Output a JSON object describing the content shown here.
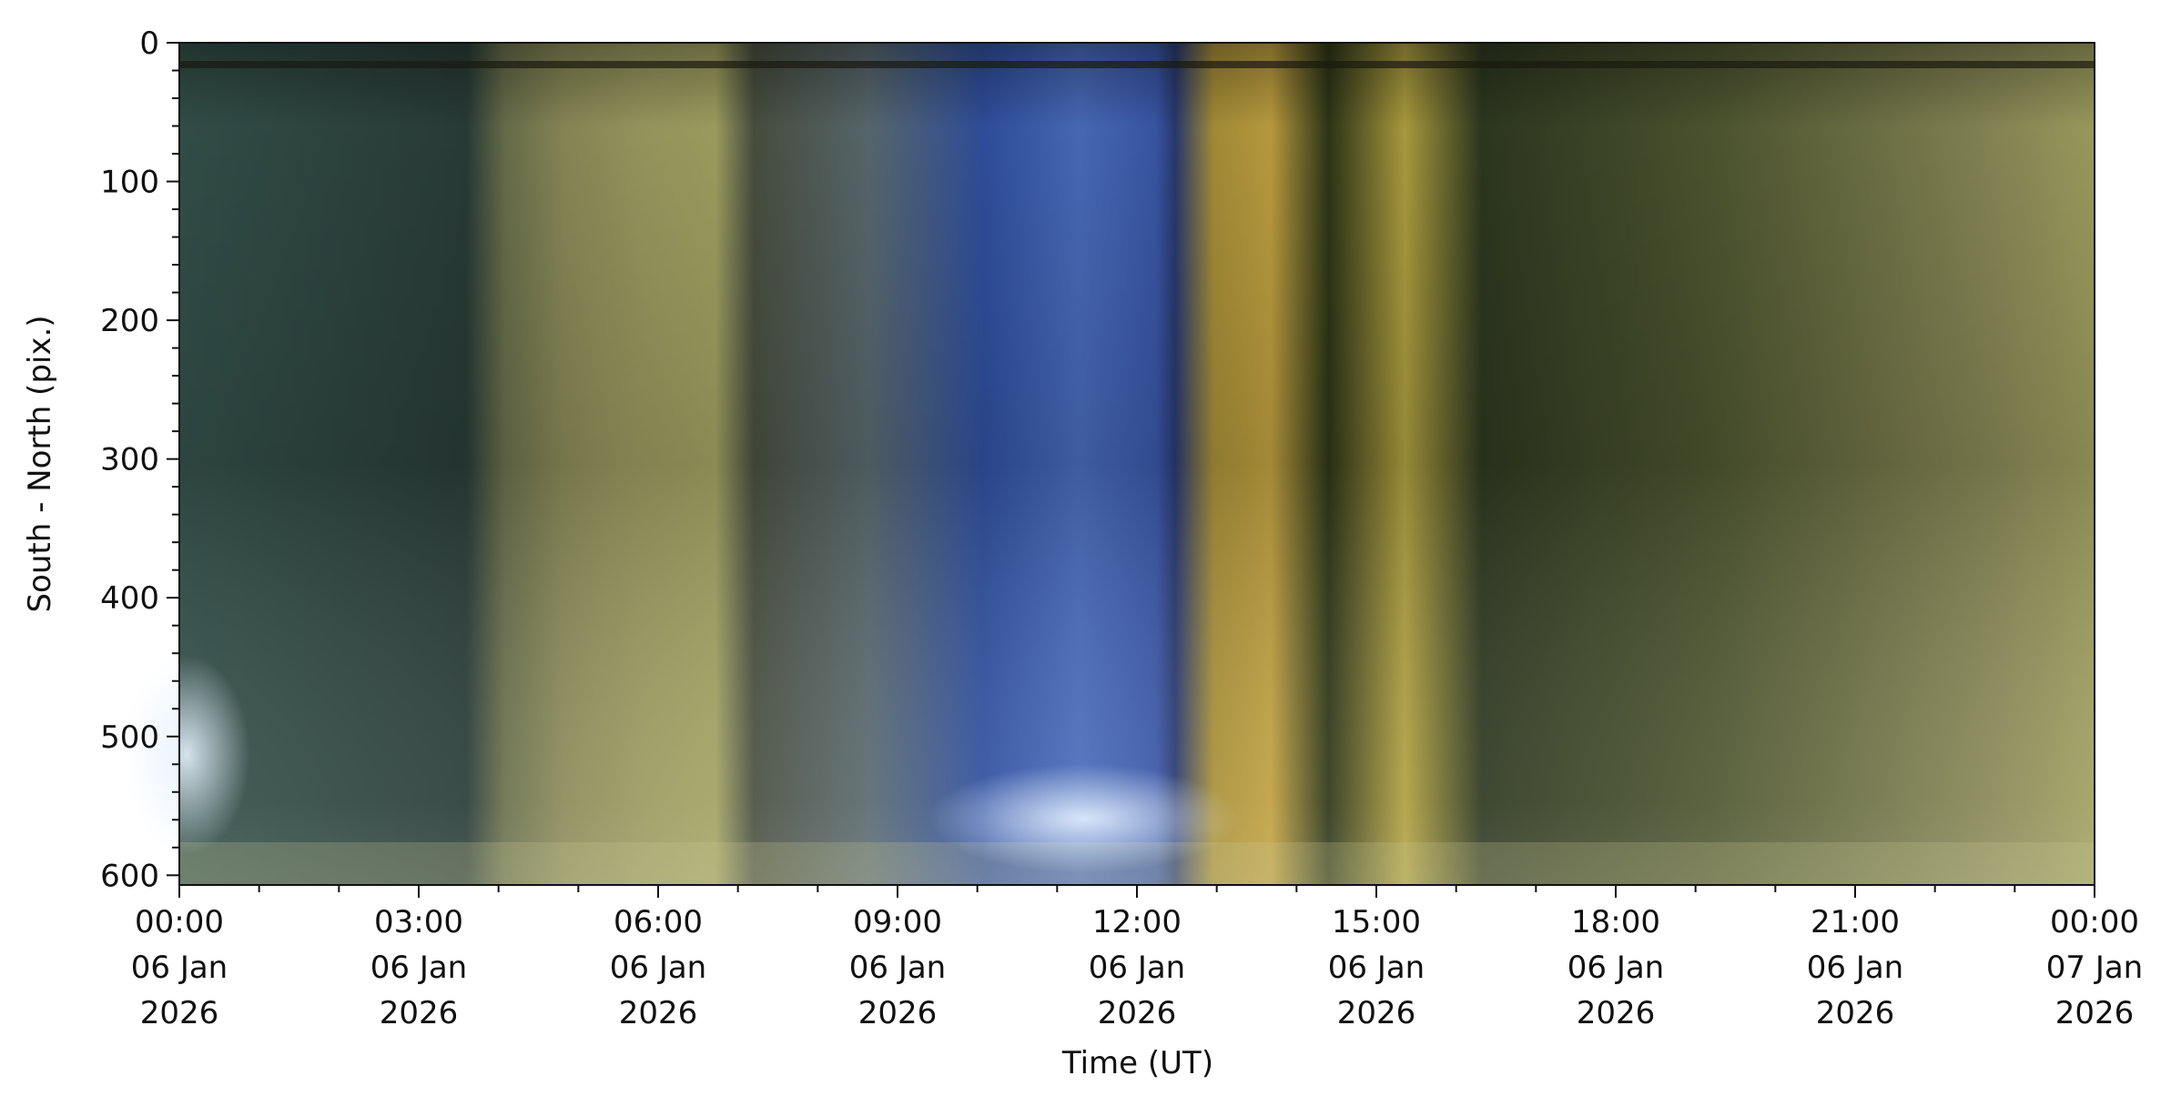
{
  "chart_data": {
    "type": "keogram",
    "xlabel": "Time (UT)",
    "ylabel": "South - North (pix.)",
    "xlim": [
      "2026-01-06T00:00",
      "2026-01-07T00:00"
    ],
    "xticks": [
      {
        "value": "2026-01-06T00:00",
        "label": [
          "00:00",
          "06 Jan",
          "2026"
        ]
      },
      {
        "value": "2026-01-06T03:00",
        "label": [
          "03:00",
          "06 Jan",
          "2026"
        ]
      },
      {
        "value": "2026-01-06T06:00",
        "label": [
          "06:00",
          "06 Jan",
          "2026"
        ]
      },
      {
        "value": "2026-01-06T09:00",
        "label": [
          "09:00",
          "06 Jan",
          "2026"
        ]
      },
      {
        "value": "2026-01-06T12:00",
        "label": [
          "12:00",
          "06 Jan",
          "2026"
        ]
      },
      {
        "value": "2026-01-06T15:00",
        "label": [
          "15:00",
          "06 Jan",
          "2026"
        ]
      },
      {
        "value": "2026-01-06T18:00",
        "label": [
          "18:00",
          "06 Jan",
          "2026"
        ]
      },
      {
        "value": "2026-01-06T21:00",
        "label": [
          "21:00",
          "06 Jan",
          "2026"
        ]
      },
      {
        "value": "2026-01-07T00:00",
        "label": [
          "00:00",
          "07 Jan",
          "2026"
        ]
      }
    ],
    "xminorticks": [
      "2026-01-06T01:00",
      "2026-01-06T02:00",
      "2026-01-06T04:00",
      "2026-01-06T05:00",
      "2026-01-06T07:00",
      "2026-01-06T08:00",
      "2026-01-06T10:00",
      "2026-01-06T11:00",
      "2026-01-06T13:00",
      "2026-01-06T14:00",
      "2026-01-06T16:00",
      "2026-01-06T17:00",
      "2026-01-06T19:00",
      "2026-01-06T20:00",
      "2026-01-06T22:00",
      "2026-01-06T23:00"
    ],
    "ylim": [
      607,
      0
    ],
    "yticks": [
      0,
      100,
      200,
      300,
      400,
      500,
      600
    ],
    "yminorticks": [
      20,
      40,
      60,
      80,
      120,
      140,
      160,
      180,
      220,
      240,
      260,
      280,
      320,
      340,
      360,
      380,
      420,
      440,
      460,
      480,
      520,
      540,
      560,
      580
    ]
  }
}
